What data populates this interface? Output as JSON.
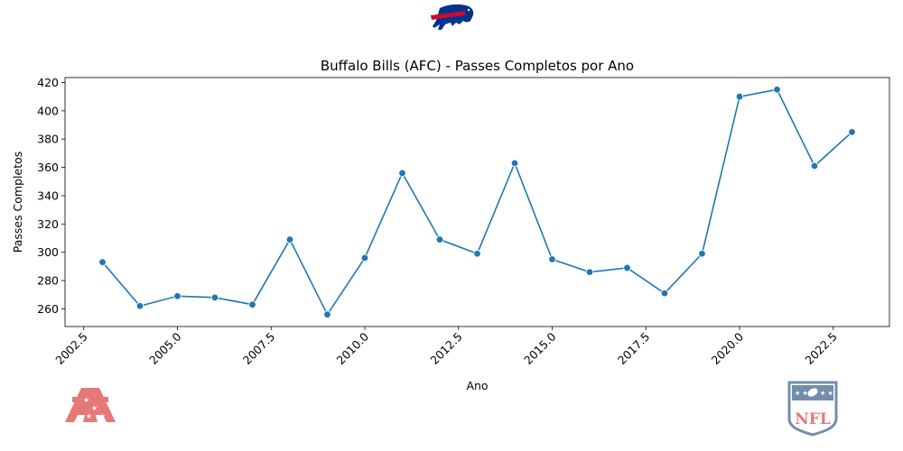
{
  "logos": {
    "team": "Buffalo Bills",
    "conference": "AFC",
    "league": "NFL"
  },
  "chart_data": {
    "type": "line",
    "title": "Buffalo Bills (AFC) - Passes Completos por Ano",
    "xlabel": "Ano",
    "ylabel": "Passes Completos",
    "x": [
      2003,
      2004,
      2005,
      2006,
      2007,
      2008,
      2009,
      2010,
      2011,
      2012,
      2013,
      2014,
      2015,
      2016,
      2017,
      2018,
      2019,
      2020,
      2021,
      2022,
      2023
    ],
    "series": [
      {
        "values": [
          293,
          262,
          269,
          268,
          263,
          309,
          256,
          296,
          356,
          309,
          299,
          363,
          295,
          286,
          289,
          271,
          299,
          410,
          415,
          361,
          385
        ],
        "color": "#1f77b4",
        "marker": "circle"
      }
    ],
    "xlim": [
      2002.0,
      2024.0
    ],
    "ylim": [
      247.5,
      423.5
    ],
    "xticks": [
      "2002.5",
      "2005.0",
      "2007.5",
      "2010.0",
      "2012.5",
      "2015.0",
      "2017.5",
      "2020.0",
      "2022.5"
    ],
    "yticks": [
      "260",
      "280",
      "300",
      "320",
      "340",
      "360",
      "380",
      "400",
      "420"
    ],
    "grid": false,
    "legend": "none"
  }
}
